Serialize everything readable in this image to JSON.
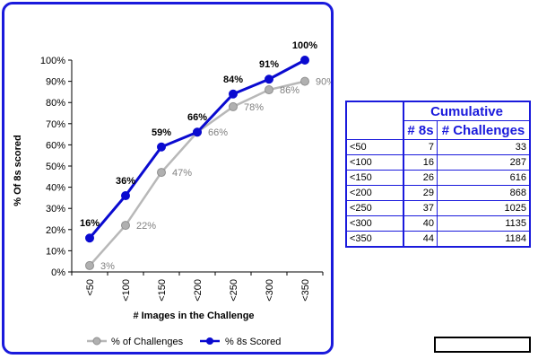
{
  "chart_data": {
    "type": "line",
    "title": "",
    "xlabel": "# Images in the Challenge",
    "ylabel": "% Of 8s scored",
    "categories": [
      "<50",
      "<100",
      "<150",
      "<200",
      "<250",
      "<300",
      "<350"
    ],
    "ylim": [
      0,
      100
    ],
    "yticks": [
      "0%",
      "10%",
      "20%",
      "30%",
      "40%",
      "50%",
      "60%",
      "70%",
      "80%",
      "90%",
      "100%"
    ],
    "grid": false,
    "legend_position": "bottom",
    "series": [
      {
        "name": "% of Challenges",
        "values": [
          3,
          22,
          47,
          66,
          78,
          86,
          90
        ],
        "labels": [
          "3%",
          "22%",
          "47%",
          "66%",
          "78%",
          "86%",
          "90%"
        ],
        "color": "#b8b8b8"
      },
      {
        "name": "% 8s Scored",
        "values": [
          16,
          36,
          59,
          66,
          84,
          91,
          100
        ],
        "labels": [
          "16%",
          "36%",
          "59%",
          "66%",
          "84%",
          "91%",
          "100%"
        ],
        "color": "#0a0ad0"
      }
    ]
  },
  "table": {
    "group_header": "Cumulative",
    "columns": [
      "# 8s",
      "# Challenges"
    ],
    "rows": [
      {
        "label": "<50",
        "eights": "7",
        "challenges": "33"
      },
      {
        "label": "<100",
        "eights": "16",
        "challenges": "287"
      },
      {
        "label": "<150",
        "eights": "26",
        "challenges": "616"
      },
      {
        "label": "<200",
        "eights": "29",
        "challenges": "868"
      },
      {
        "label": "<250",
        "eights": "37",
        "challenges": "1025"
      },
      {
        "label": "<300",
        "eights": "40",
        "challenges": "1135"
      },
      {
        "label": "<350",
        "eights": "44",
        "challenges": "1184"
      }
    ]
  },
  "colors": {
    "accent": "#1a1adc",
    "series_primary": "#0a0ad0",
    "series_secondary": "#b8b8b8"
  }
}
